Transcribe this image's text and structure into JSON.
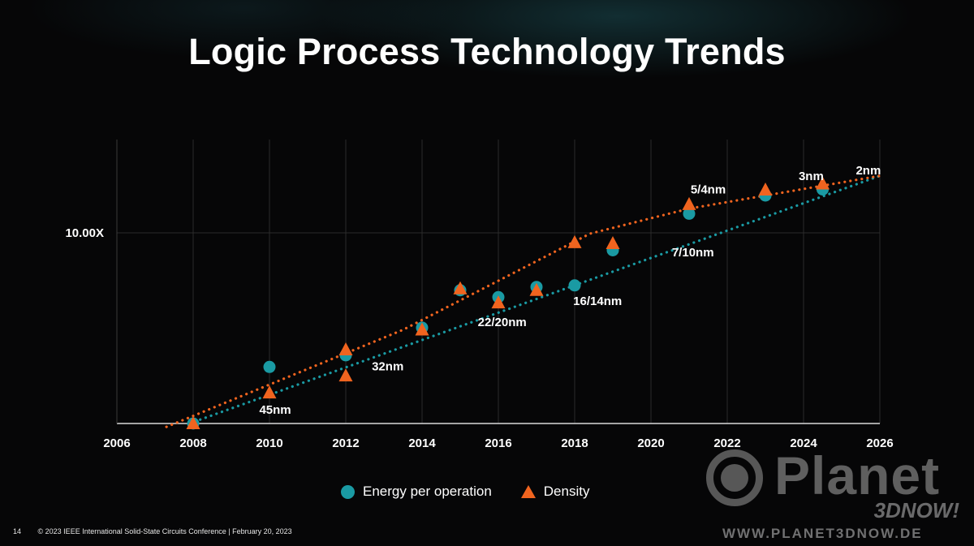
{
  "title": "Logic Process Technology Trends",
  "colors": {
    "energy": "#1a9aa3",
    "density": "#f0641f",
    "background": "#060607",
    "grid": "#2b2b2b"
  },
  "chart_data": {
    "type": "scatter",
    "title": "Logic Process Technology Trends",
    "xlabel": "",
    "ylabel": "",
    "xlim": [
      2006,
      2026
    ],
    "x_ticks": [
      2006,
      2008,
      2010,
      2012,
      2014,
      2016,
      2018,
      2020,
      2022,
      2024,
      2026
    ],
    "y_scale": "log",
    "y_ticks": [
      {
        "value": 10,
        "label": "10.00X"
      }
    ],
    "grid": true,
    "legend_position": "bottom",
    "series": [
      {
        "name": "Energy per operation",
        "marker": "circle",
        "color": "#1a9aa3",
        "points": [
          [
            2008,
            1.0
          ],
          [
            2010,
            1.98
          ],
          [
            2012,
            2.28
          ],
          [
            2014,
            3.18
          ],
          [
            2015,
            5.0
          ],
          [
            2016,
            4.6
          ],
          [
            2017,
            5.2
          ],
          [
            2018,
            5.3
          ],
          [
            2019,
            8.1
          ],
          [
            2021,
            12.6
          ],
          [
            2023,
            15.7
          ],
          [
            2024.5,
            16.9
          ]
        ],
        "trend": [
          [
            2007.9,
            1.0
          ],
          [
            2026,
            19.9
          ]
        ]
      },
      {
        "name": "Density",
        "marker": "triangle",
        "color": "#f0641f",
        "points": [
          [
            2008,
            1.0
          ],
          [
            2010,
            1.45
          ],
          [
            2012,
            1.78
          ],
          [
            2012,
            2.44
          ],
          [
            2014,
            3.1
          ],
          [
            2015,
            5.1
          ],
          [
            2016,
            4.3
          ],
          [
            2017,
            5.0
          ],
          [
            2018,
            8.9
          ],
          [
            2019,
            8.8
          ],
          [
            2021,
            14.1
          ],
          [
            2023,
            16.8
          ],
          [
            2024.5,
            18.1
          ]
        ],
        "trend": [
          [
            2007.3,
            0.96
          ],
          [
            2013.5,
            3.1
          ],
          [
            2018.4,
            9.9
          ],
          [
            2021,
            13.4
          ],
          [
            2026,
            19.9
          ]
        ]
      }
    ],
    "annotations": [
      {
        "text": "45nm",
        "x": 2010.15,
        "y": 1.18
      },
      {
        "text": "32nm",
        "x": 2013.1,
        "y": 2.0
      },
      {
        "text": "22/20nm",
        "x": 2016.1,
        "y": 3.4
      },
      {
        "text": "16/14nm",
        "x": 2018.6,
        "y": 4.4
      },
      {
        "text": "7/10nm",
        "x": 2021.1,
        "y": 7.9
      },
      {
        "text": "5/4nm",
        "x": 2021.5,
        "y": 16.9
      },
      {
        "text": "3nm",
        "x": 2024.2,
        "y": 19.9
      },
      {
        "text": "2nm",
        "x": 2025.7,
        "y": 21.3
      }
    ]
  },
  "legend": {
    "energy_label": "Energy per operation",
    "density_label": "Density"
  },
  "footer": {
    "page": "14",
    "text": "© 2023 IEEE International Solid-State Circuits Conference  |  February 20, 2023"
  },
  "watermark": {
    "word": "Planet",
    "sub": "3DNOW!",
    "url": "WWW.PLANET3DNOW.DE"
  }
}
